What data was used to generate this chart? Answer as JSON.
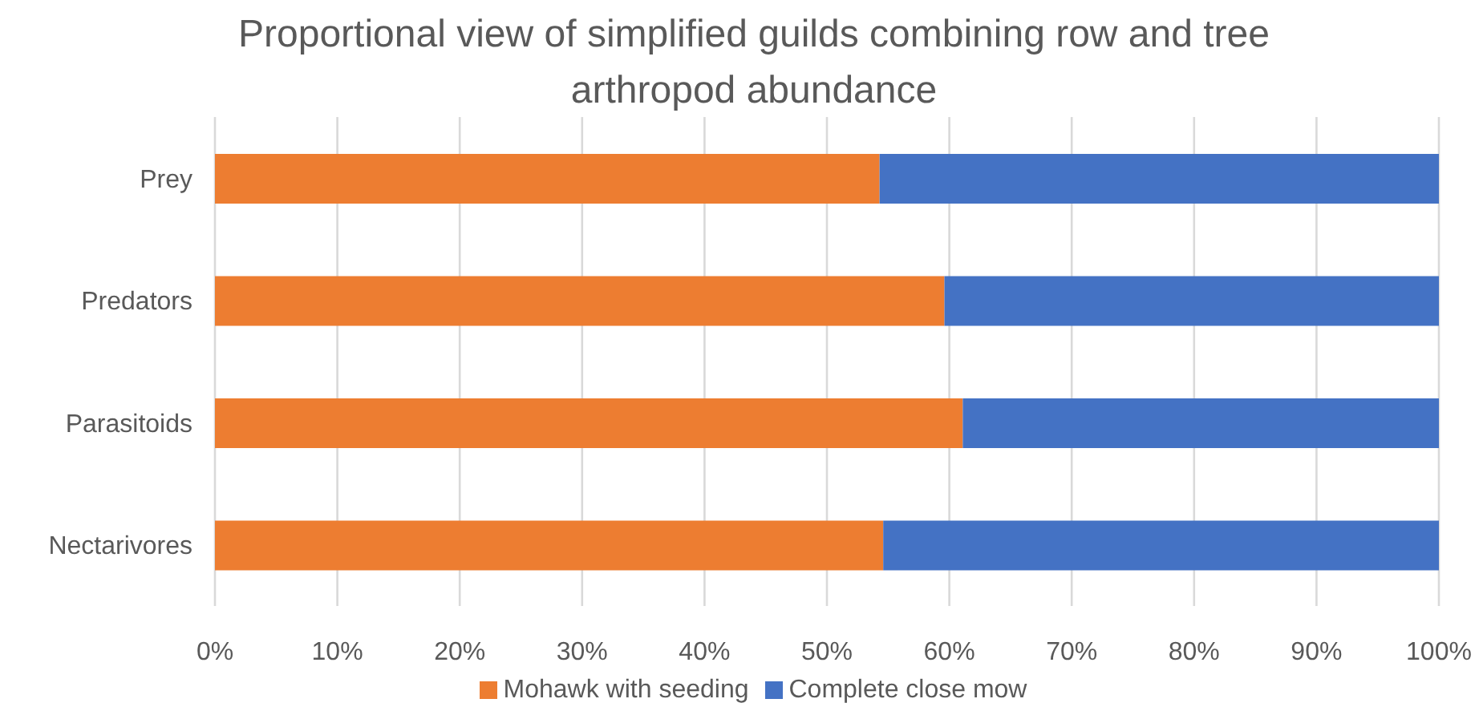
{
  "chart_data": {
    "type": "bar",
    "orientation": "horizontal",
    "stacked": true,
    "title": "Proportional view of simplified guilds combining row and tree arthropod abundance",
    "categories": [
      "Prey",
      "Predators",
      "Parasitoids",
      "Nectarivores"
    ],
    "series": [
      {
        "name": "Mohawk with seeding",
        "color": "#ed7d31",
        "values": [
          54.3,
          59.6,
          61.1,
          54.6
        ]
      },
      {
        "name": "Complete close mow",
        "color": "#4472c4",
        "values": [
          45.7,
          40.4,
          38.9,
          45.4
        ]
      }
    ],
    "xlim": [
      0,
      100
    ],
    "xticks": [
      {
        "value": 0,
        "label": "0%"
      },
      {
        "value": 10,
        "label": "10%"
      },
      {
        "value": 20,
        "label": "20%"
      },
      {
        "value": 30,
        "label": "30%"
      },
      {
        "value": 40,
        "label": "40%"
      },
      {
        "value": 50,
        "label": "50%"
      },
      {
        "value": 60,
        "label": "60%"
      },
      {
        "value": 70,
        "label": "70%"
      },
      {
        "value": 80,
        "label": "80%"
      },
      {
        "value": 90,
        "label": "90%"
      },
      {
        "value": 100,
        "label": "100%"
      }
    ],
    "grid": "x",
    "legend": "bottom"
  }
}
